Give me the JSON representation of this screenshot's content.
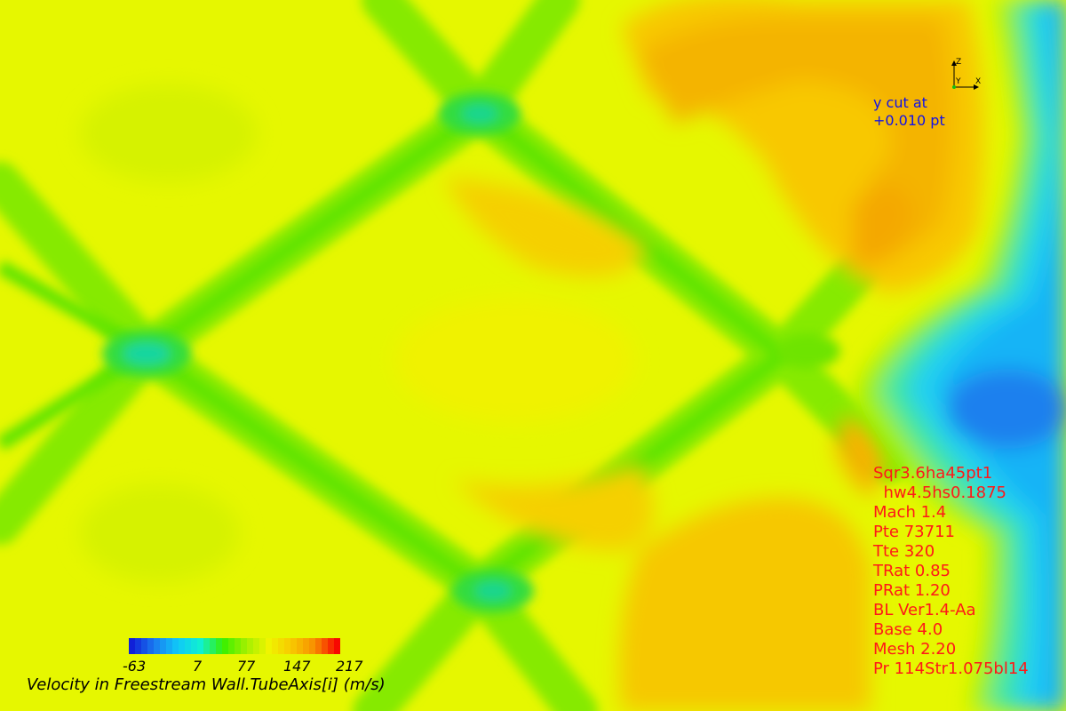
{
  "view": {
    "cut_label": [
      "y cut at",
      "+0.010 pt"
    ],
    "axes": {
      "x": "X",
      "y": "Y",
      "z": "Z"
    }
  },
  "legend": {
    "title": "Velocity in Freestream Wall.TubeAxis[i] (m/s)",
    "ticks": [
      "-63",
      "7",
      "77",
      "147",
      "217"
    ],
    "min": -63,
    "max": 217,
    "colors": [
      "#1020d8",
      "#1a7cf0",
      "#10c8f8",
      "#10f0d0",
      "#38f000",
      "#a0f000",
      "#f0f400",
      "#f8c800",
      "#f89000",
      "#f80800"
    ]
  },
  "case_info": [
    "Sqr3.6ha45pt1",
    "  hw4.5hs0.1875",
    "Mach 1.4",
    "Pte 73711",
    "Tte 320",
    "TRat 0.85",
    "PRat 1.20",
    "BL Ver1.4-Aa",
    "Base 4.0",
    "Mesh 2.20",
    "Pr 114Str1.075bl14"
  ],
  "colors": {
    "background_field": "#e6f700",
    "cut_label": "#1010e8",
    "case_info": "#ff1818"
  }
}
